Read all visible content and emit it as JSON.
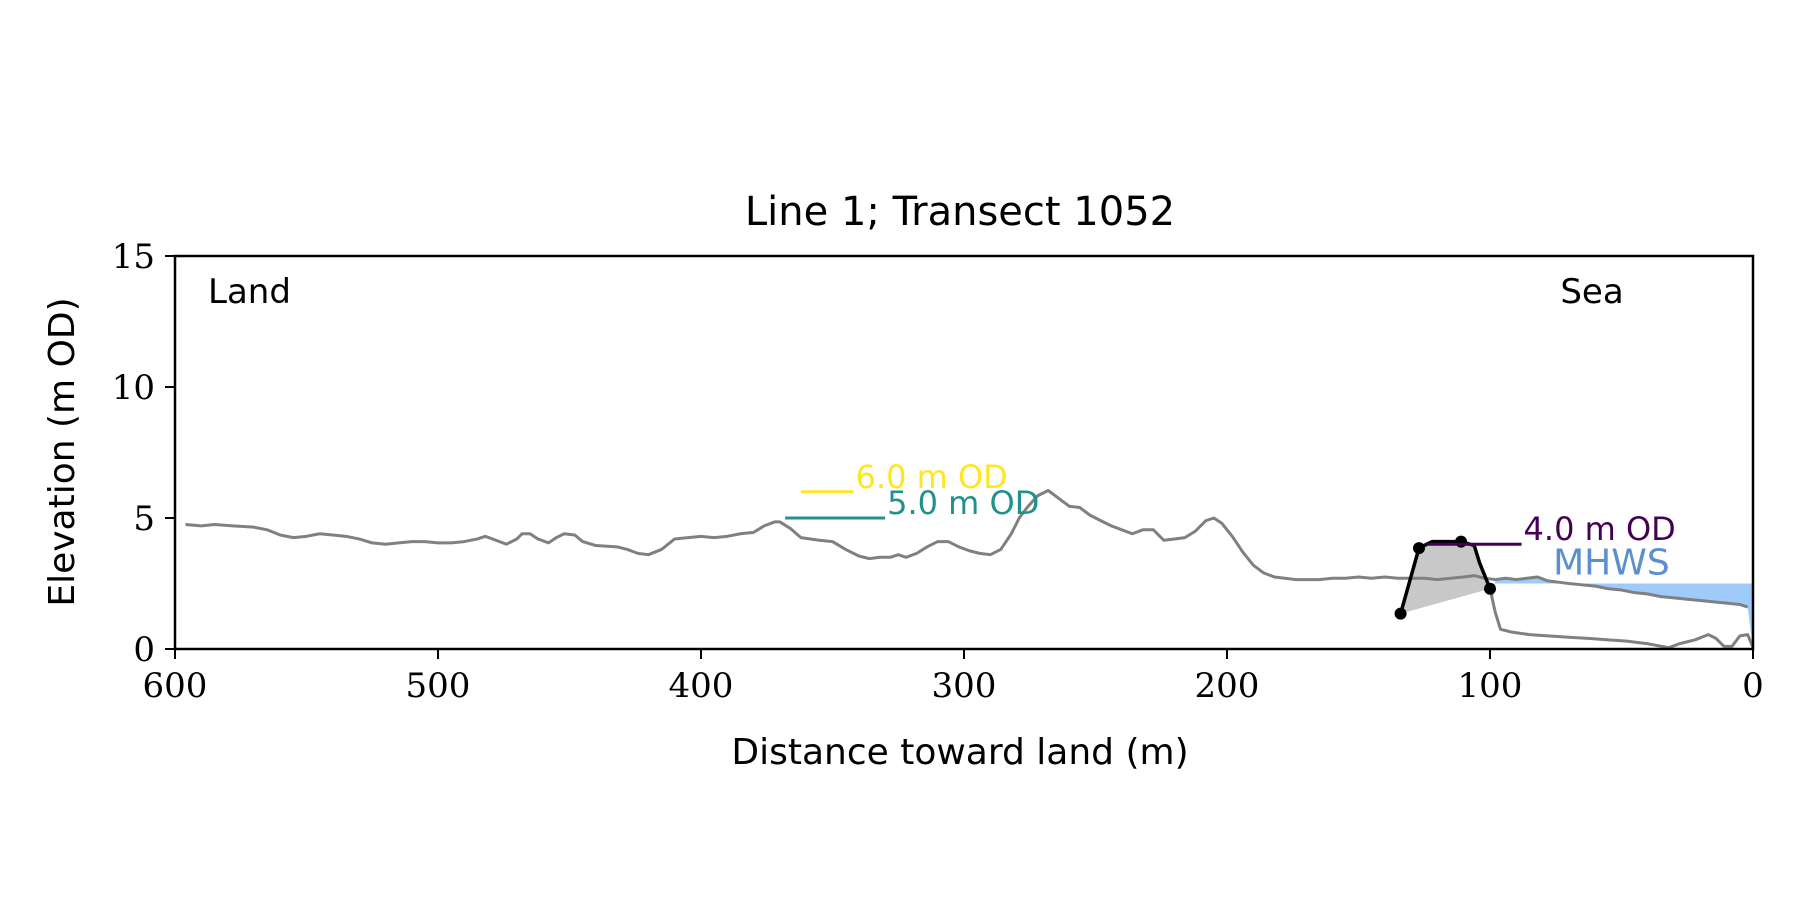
{
  "chart_data": {
    "type": "line",
    "title": "Line 1; Transect 1052",
    "xlabel": "Distance toward land (m)",
    "ylabel": "Elevation (m OD)",
    "xlim": [
      600,
      0
    ],
    "ylim": [
      0,
      15
    ],
    "x_axis_reversed": true,
    "xticks": [
      600,
      500,
      400,
      300,
      200,
      100,
      0
    ],
    "yticks": [
      0,
      5,
      10,
      15
    ],
    "grid": false,
    "corner_labels": {
      "left": "Land",
      "right": "Sea"
    },
    "profile": {
      "color": "#808080",
      "points": [
        [
          596,
          4.75
        ],
        [
          590,
          4.7
        ],
        [
          585,
          4.75
        ],
        [
          578,
          4.7
        ],
        [
          570,
          4.65
        ],
        [
          565,
          4.55
        ],
        [
          560,
          4.35
        ],
        [
          555,
          4.25
        ],
        [
          550,
          4.3
        ],
        [
          545,
          4.4
        ],
        [
          540,
          4.35
        ],
        [
          535,
          4.3
        ],
        [
          530,
          4.2
        ],
        [
          525,
          4.05
        ],
        [
          520,
          4.0
        ],
        [
          515,
          4.05
        ],
        [
          510,
          4.1
        ],
        [
          505,
          4.1
        ],
        [
          500,
          4.05
        ],
        [
          495,
          4.05
        ],
        [
          490,
          4.1
        ],
        [
          485,
          4.2
        ],
        [
          482,
          4.3
        ],
        [
          478,
          4.15
        ],
        [
          474,
          4.0
        ],
        [
          470,
          4.2
        ],
        [
          468,
          4.4
        ],
        [
          465,
          4.4
        ],
        [
          462,
          4.2
        ],
        [
          458,
          4.05
        ],
        [
          455,
          4.25
        ],
        [
          452,
          4.4
        ],
        [
          448,
          4.35
        ],
        [
          445,
          4.1
        ],
        [
          440,
          3.95
        ],
        [
          432,
          3.9
        ],
        [
          428,
          3.8
        ],
        [
          424,
          3.65
        ],
        [
          420,
          3.6
        ],
        [
          415,
          3.8
        ],
        [
          410,
          4.2
        ],
        [
          405,
          4.25
        ],
        [
          400,
          4.3
        ],
        [
          395,
          4.25
        ],
        [
          390,
          4.3
        ],
        [
          385,
          4.4
        ],
        [
          380,
          4.45
        ],
        [
          376,
          4.7
        ],
        [
          372,
          4.85
        ],
        [
          370,
          4.85
        ],
        [
          366,
          4.6
        ],
        [
          362,
          4.25
        ],
        [
          355,
          4.15
        ],
        [
          350,
          4.1
        ],
        [
          345,
          3.8
        ],
        [
          340,
          3.55
        ],
        [
          336,
          3.45
        ],
        [
          332,
          3.5
        ],
        [
          328,
          3.5
        ],
        [
          325,
          3.6
        ],
        [
          322,
          3.5
        ],
        [
          318,
          3.65
        ],
        [
          314,
          3.9
        ],
        [
          310,
          4.1
        ],
        [
          306,
          4.1
        ],
        [
          302,
          3.9
        ],
        [
          298,
          3.75
        ],
        [
          294,
          3.65
        ],
        [
          290,
          3.6
        ],
        [
          286,
          3.8
        ],
        [
          282,
          4.4
        ],
        [
          279,
          5.0
        ],
        [
          276,
          5.4
        ],
        [
          272,
          5.85
        ],
        [
          268,
          6.05
        ],
        [
          264,
          5.75
        ],
        [
          260,
          5.45
        ],
        [
          256,
          5.4
        ],
        [
          252,
          5.1
        ],
        [
          248,
          4.9
        ],
        [
          244,
          4.7
        ],
        [
          240,
          4.55
        ],
        [
          236,
          4.4
        ],
        [
          232,
          4.55
        ],
        [
          228,
          4.55
        ],
        [
          224,
          4.15
        ],
        [
          220,
          4.2
        ],
        [
          216,
          4.25
        ],
        [
          212,
          4.5
        ],
        [
          208,
          4.9
        ],
        [
          205,
          5.0
        ],
        [
          202,
          4.8
        ],
        [
          198,
          4.3
        ],
        [
          194,
          3.7
        ],
        [
          190,
          3.2
        ],
        [
          186,
          2.9
        ],
        [
          182,
          2.75
        ],
        [
          178,
          2.7
        ],
        [
          174,
          2.65
        ],
        [
          170,
          2.65
        ],
        [
          165,
          2.65
        ],
        [
          160,
          2.7
        ],
        [
          155,
          2.7
        ],
        [
          150,
          2.75
        ],
        [
          145,
          2.7
        ],
        [
          140,
          2.75
        ],
        [
          135,
          2.7
        ],
        [
          130,
          2.7
        ],
        [
          125,
          2.7
        ],
        [
          120,
          2.65
        ],
        [
          115,
          2.7
        ],
        [
          110,
          2.75
        ],
        [
          106,
          2.8
        ],
        [
          102,
          2.7
        ],
        [
          98,
          2.65
        ],
        [
          94,
          2.7
        ],
        [
          90,
          2.65
        ],
        [
          86,
          2.7
        ],
        [
          82,
          2.75
        ],
        [
          78,
          2.6
        ],
        [
          74,
          2.55
        ],
        [
          70,
          2.5
        ],
        [
          65,
          2.45
        ],
        [
          60,
          2.4
        ],
        [
          55,
          2.3
        ],
        [
          50,
          2.25
        ],
        [
          45,
          2.15
        ],
        [
          40,
          2.1
        ],
        [
          35,
          2.0
        ],
        [
          30,
          1.95
        ],
        [
          25,
          1.9
        ],
        [
          20,
          1.85
        ],
        [
          15,
          1.8
        ],
        [
          10,
          1.75
        ],
        [
          5,
          1.7
        ],
        [
          2,
          1.6
        ]
      ]
    },
    "dune_pair": [
      {
        "label": "6.0 m OD",
        "elevation": 6.0,
        "color": "#fde725"
      },
      {
        "label": "5.0 m OD",
        "elevation": 5.0,
        "color": "#21918c"
      }
    ],
    "barrier": {
      "label": "4.0 m OD",
      "elevation": 4.0,
      "color": "#440154"
    },
    "mhws": {
      "label": "MHWS",
      "elevation": 2.5,
      "fill_color": "#9ecbfa",
      "label_color": "#5b8fd0"
    }
  }
}
